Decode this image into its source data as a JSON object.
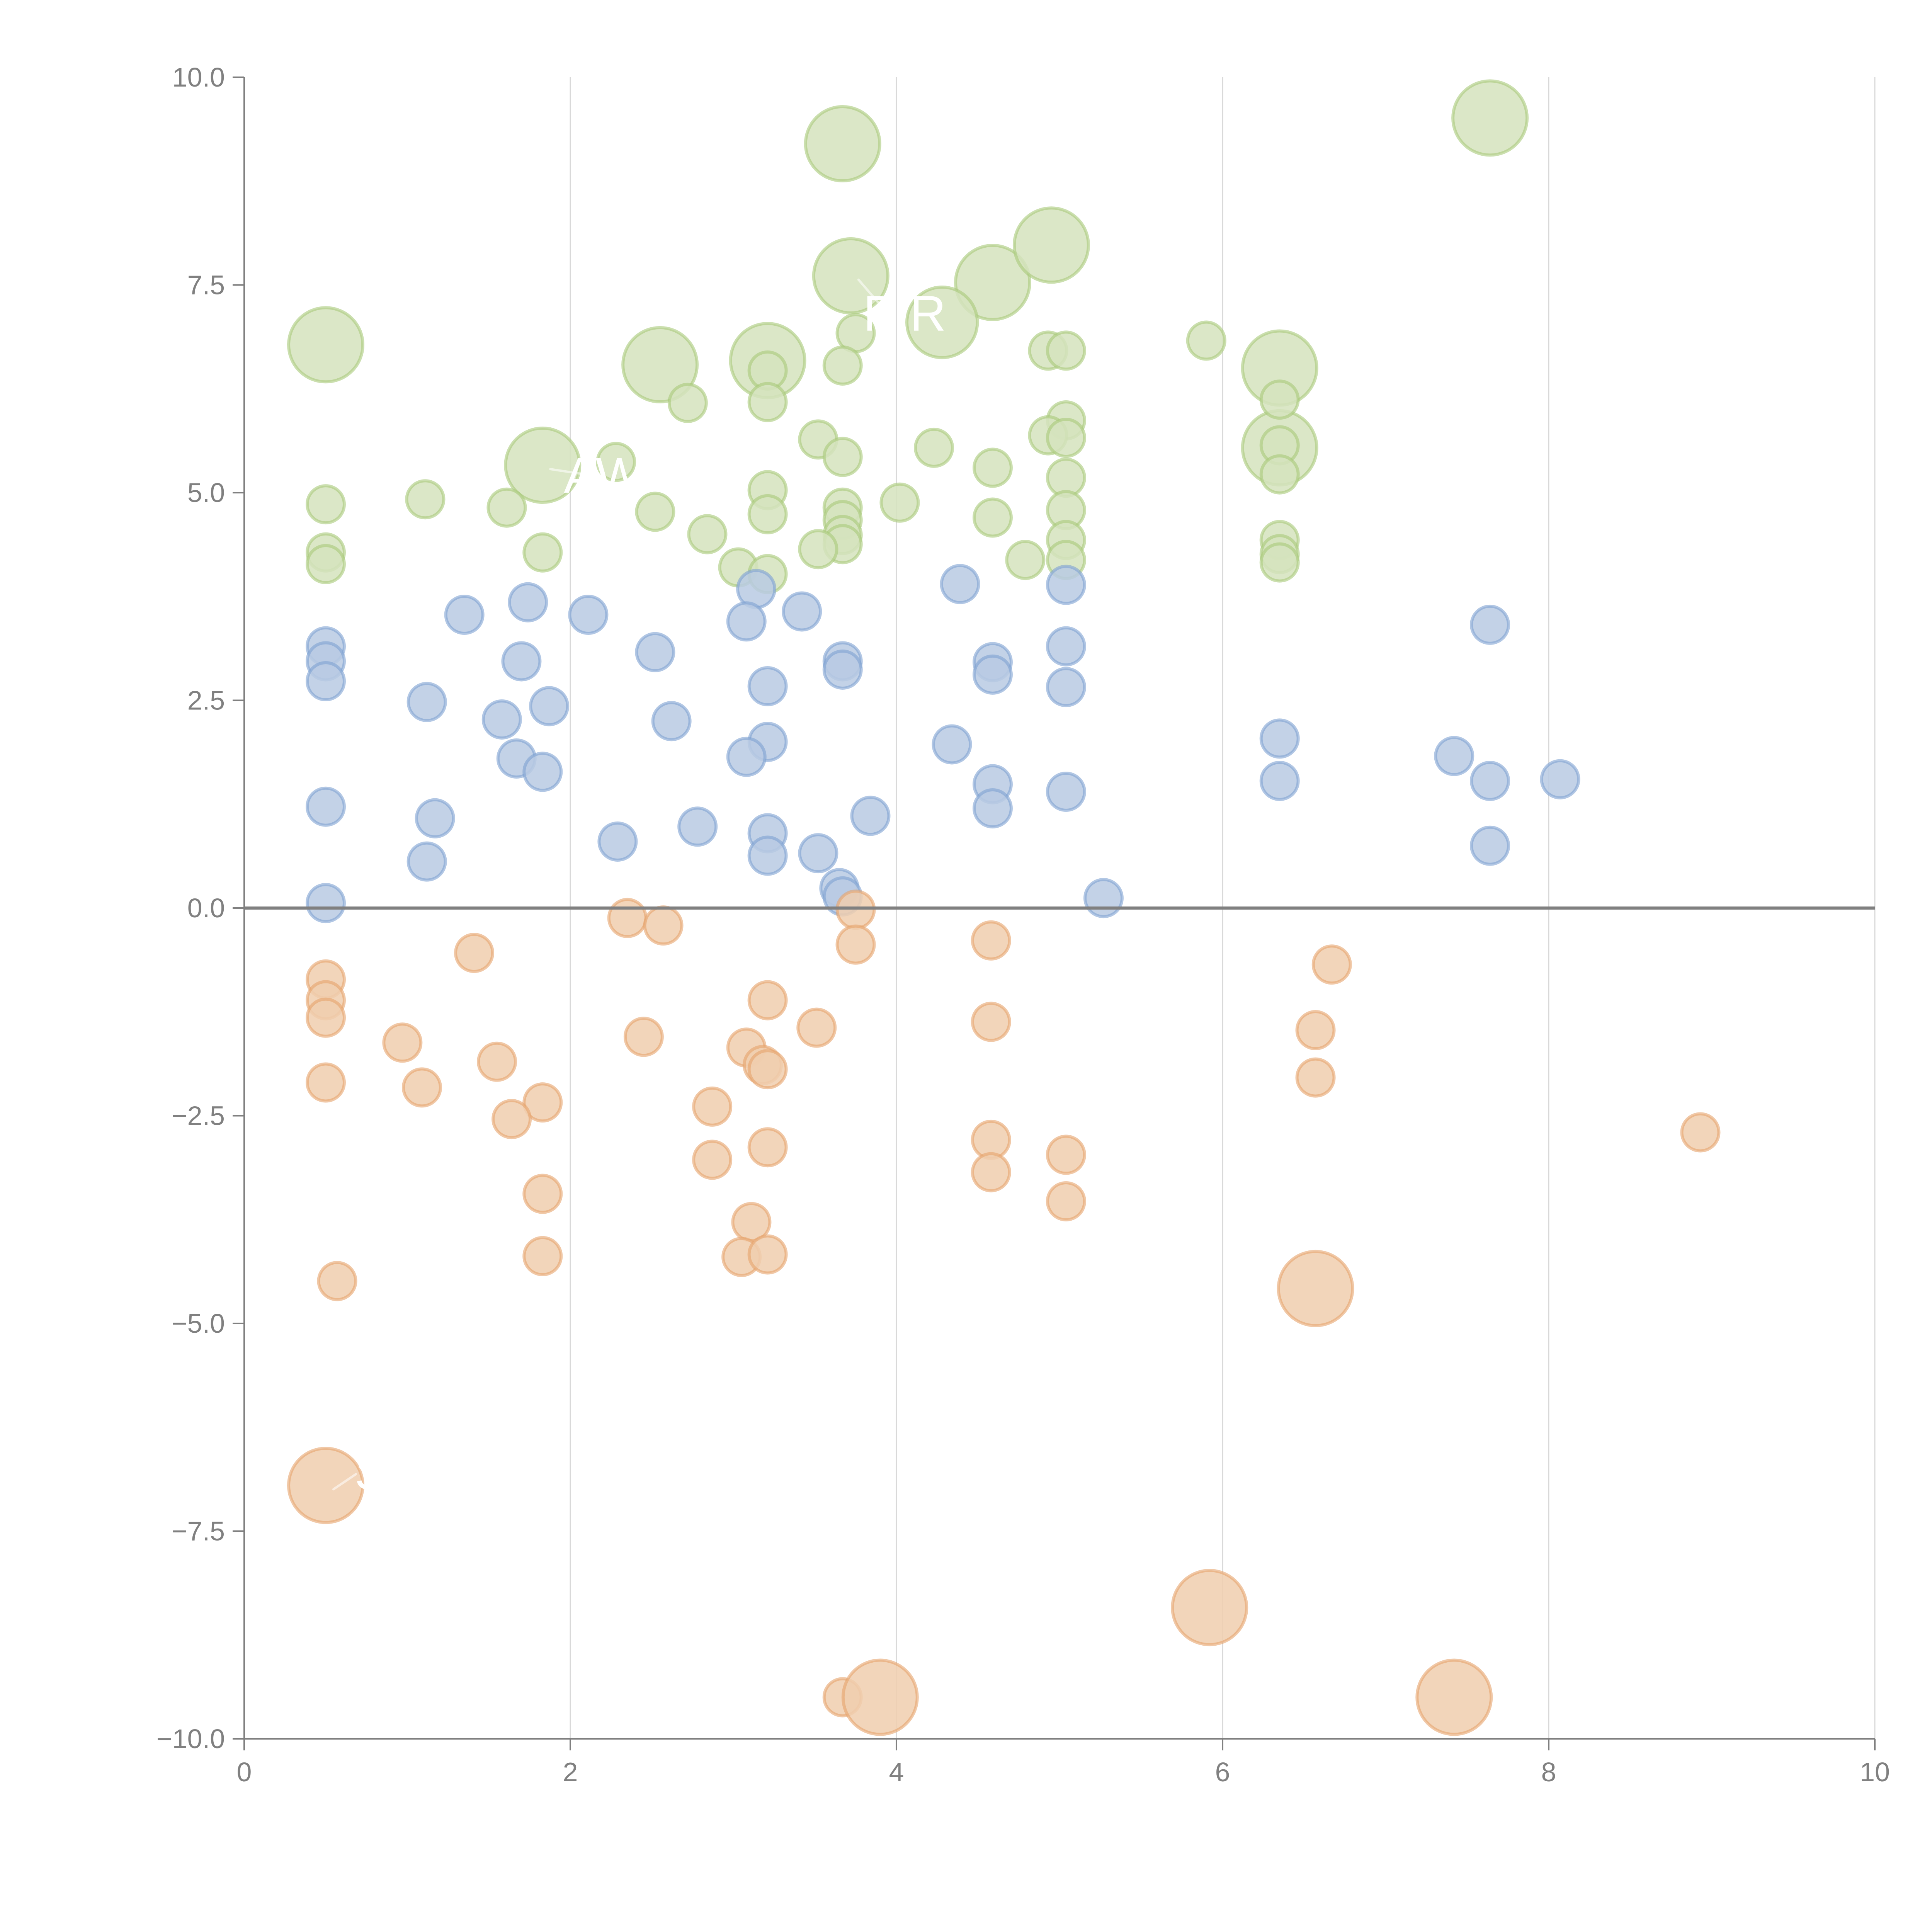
{
  "chart_data": {
    "type": "scatter",
    "subtype": "bubble",
    "title": "",
    "xlabel": "",
    "ylabel": "",
    "xlim": [
      0,
      10
    ],
    "ylim": [
      -10,
      10
    ],
    "x_ticks": [
      "0",
      "2",
      "4",
      "6",
      "8",
      "10"
    ],
    "x_tick_values": [
      0,
      2,
      4,
      6,
      8,
      10
    ],
    "y_ticks": [
      "10.0",
      "7.5",
      "5.0",
      "2.5",
      "0.0",
      "−2.5",
      "−5.0",
      "−7.5",
      "−10.0"
    ],
    "y_tick_values": [
      10,
      7.5,
      5,
      2.5,
      0,
      -2.5,
      -5,
      -7.5,
      -10
    ],
    "grid": "vertical",
    "zero_line": true,
    "legend": "none",
    "series": [
      {
        "name": "green",
        "color": "#a9c97a",
        "fill": "#d5e3bd",
        "points": [
          {
            "x": 0.5,
            "y": 6.78,
            "size": 2
          },
          {
            "x": 3.67,
            "y": 9.2,
            "size": 2
          },
          {
            "x": 7.64,
            "y": 9.51,
            "size": 2
          },
          {
            "x": 3.72,
            "y": 7.61,
            "size": 2
          },
          {
            "x": 4.59,
            "y": 7.53,
            "size": 2
          },
          {
            "x": 4.95,
            "y": 7.98,
            "size": 2
          },
          {
            "x": 4.28,
            "y": 7.05,
            "size": 1.9
          },
          {
            "x": 2.55,
            "y": 6.54,
            "size": 2
          },
          {
            "x": 3.21,
            "y": 6.59,
            "size": 2
          },
          {
            "x": 6.35,
            "y": 6.5,
            "size": 2
          },
          {
            "x": 6.35,
            "y": 5.54,
            "size": 2
          },
          {
            "x": 1.83,
            "y": 5.33,
            "size": 2
          },
          {
            "x": 3.75,
            "y": 6.92,
            "size": 1
          },
          {
            "x": 3.67,
            "y": 6.53,
            "size": 1
          },
          {
            "x": 3.21,
            "y": 6.47,
            "size": 1
          },
          {
            "x": 3.21,
            "y": 6.09,
            "size": 1
          },
          {
            "x": 2.72,
            "y": 6.08,
            "size": 1
          },
          {
            "x": 5.9,
            "y": 6.83,
            "size": 1
          },
          {
            "x": 4.93,
            "y": 6.71,
            "size": 1
          },
          {
            "x": 5.04,
            "y": 6.71,
            "size": 1
          },
          {
            "x": 5.04,
            "y": 5.87,
            "size": 1
          },
          {
            "x": 4.93,
            "y": 5.69,
            "size": 1
          },
          {
            "x": 5.04,
            "y": 5.66,
            "size": 1
          },
          {
            "x": 6.35,
            "y": 6.12,
            "size": 1
          },
          {
            "x": 6.35,
            "y": 5.57,
            "size": 1
          },
          {
            "x": 6.35,
            "y": 5.22,
            "size": 1
          },
          {
            "x": 3.52,
            "y": 5.64,
            "size": 1
          },
          {
            "x": 3.67,
            "y": 5.43,
            "size": 1
          },
          {
            "x": 4.23,
            "y": 5.54,
            "size": 1
          },
          {
            "x": 4.59,
            "y": 5.3,
            "size": 1
          },
          {
            "x": 5.04,
            "y": 5.18,
            "size": 1
          },
          {
            "x": 2.28,
            "y": 5.37,
            "size": 1
          },
          {
            "x": 0.5,
            "y": 4.86,
            "size": 1
          },
          {
            "x": 1.11,
            "y": 4.92,
            "size": 1
          },
          {
            "x": 1.61,
            "y": 4.82,
            "size": 1
          },
          {
            "x": 2.52,
            "y": 4.77,
            "size": 1
          },
          {
            "x": 3.21,
            "y": 5.03,
            "size": 1
          },
          {
            "x": 3.21,
            "y": 4.74,
            "size": 1
          },
          {
            "x": 3.67,
            "y": 4.82,
            "size": 1
          },
          {
            "x": 3.67,
            "y": 4.67,
            "size": 1
          },
          {
            "x": 4.02,
            "y": 4.88,
            "size": 1
          },
          {
            "x": 4.59,
            "y": 4.7,
            "size": 1
          },
          {
            "x": 5.04,
            "y": 4.79,
            "size": 1
          },
          {
            "x": 2.84,
            "y": 4.5,
            "size": 1
          },
          {
            "x": 3.67,
            "y": 4.49,
            "size": 1
          },
          {
            "x": 3.67,
            "y": 4.38,
            "size": 1
          },
          {
            "x": 5.04,
            "y": 4.43,
            "size": 1
          },
          {
            "x": 0.5,
            "y": 4.28,
            "size": 1
          },
          {
            "x": 0.5,
            "y": 4.14,
            "size": 1
          },
          {
            "x": 1.83,
            "y": 4.28,
            "size": 1
          },
          {
            "x": 3.52,
            "y": 4.32,
            "size": 1
          },
          {
            "x": 3.03,
            "y": 4.1,
            "size": 1
          },
          {
            "x": 3.21,
            "y": 4.02,
            "size": 1
          },
          {
            "x": 4.79,
            "y": 4.19,
            "size": 1
          },
          {
            "x": 5.04,
            "y": 4.19,
            "size": 1
          },
          {
            "x": 6.35,
            "y": 4.43,
            "size": 1
          },
          {
            "x": 6.35,
            "y": 4.26,
            "size": 1
          },
          {
            "x": 6.35,
            "y": 4.16,
            "size": 1
          }
        ]
      },
      {
        "name": "blue",
        "color": "#7fa2d2",
        "fill": "#b8cae3",
        "points": [
          {
            "x": 0.5,
            "y": 3.15,
            "size": 1
          },
          {
            "x": 0.5,
            "y": 2.97,
            "size": 1
          },
          {
            "x": 0.5,
            "y": 2.73,
            "size": 1
          },
          {
            "x": 1.35,
            "y": 3.53,
            "size": 1
          },
          {
            "x": 1.74,
            "y": 3.68,
            "size": 1
          },
          {
            "x": 1.7,
            "y": 2.97,
            "size": 1
          },
          {
            "x": 2.11,
            "y": 3.53,
            "size": 1
          },
          {
            "x": 1.12,
            "y": 2.48,
            "size": 1
          },
          {
            "x": 1.58,
            "y": 2.27,
            "size": 1
          },
          {
            "x": 1.87,
            "y": 2.43,
            "size": 1
          },
          {
            "x": 2.52,
            "y": 3.08,
            "size": 1
          },
          {
            "x": 2.62,
            "y": 2.25,
            "size": 1
          },
          {
            "x": 1.67,
            "y": 1.8,
            "size": 1
          },
          {
            "x": 1.83,
            "y": 1.64,
            "size": 1
          },
          {
            "x": 0.5,
            "y": 1.22,
            "size": 1
          },
          {
            "x": 1.17,
            "y": 1.08,
            "size": 1
          },
          {
            "x": 1.12,
            "y": 0.56,
            "size": 1
          },
          {
            "x": 2.29,
            "y": 0.8,
            "size": 1
          },
          {
            "x": 2.78,
            "y": 0.98,
            "size": 1
          },
          {
            "x": 0.5,
            "y": 0.06,
            "size": 1
          },
          {
            "x": 3.14,
            "y": 3.84,
            "size": 1
          },
          {
            "x": 3.08,
            "y": 3.45,
            "size": 1
          },
          {
            "x": 3.42,
            "y": 3.57,
            "size": 1
          },
          {
            "x": 3.21,
            "y": 2.67,
            "size": 1
          },
          {
            "x": 3.21,
            "y": 2.0,
            "size": 1
          },
          {
            "x": 3.08,
            "y": 1.82,
            "size": 1
          },
          {
            "x": 3.21,
            "y": 0.9,
            "size": 1
          },
          {
            "x": 3.21,
            "y": 0.63,
            "size": 1
          },
          {
            "x": 3.52,
            "y": 0.66,
            "size": 1
          },
          {
            "x": 3.84,
            "y": 1.11,
            "size": 1
          },
          {
            "x": 3.65,
            "y": 0.24,
            "size": 1
          },
          {
            "x": 3.67,
            "y": 0.14,
            "size": 1
          },
          {
            "x": 3.67,
            "y": 2.97,
            "size": 1
          },
          {
            "x": 3.67,
            "y": 2.87,
            "size": 1
          },
          {
            "x": 4.39,
            "y": 3.9,
            "size": 1
          },
          {
            "x": 4.34,
            "y": 1.97,
            "size": 1
          },
          {
            "x": 4.59,
            "y": 2.96,
            "size": 1
          },
          {
            "x": 4.59,
            "y": 2.81,
            "size": 1
          },
          {
            "x": 4.59,
            "y": 1.49,
            "size": 1
          },
          {
            "x": 4.59,
            "y": 1.2,
            "size": 1
          },
          {
            "x": 5.04,
            "y": 3.89,
            "size": 1
          },
          {
            "x": 5.04,
            "y": 3.15,
            "size": 1
          },
          {
            "x": 5.04,
            "y": 2.66,
            "size": 1
          },
          {
            "x": 5.04,
            "y": 1.4,
            "size": 1
          },
          {
            "x": 5.27,
            "y": 0.12,
            "size": 1
          },
          {
            "x": 6.35,
            "y": 2.04,
            "size": 1
          },
          {
            "x": 6.35,
            "y": 1.53,
            "size": 1
          },
          {
            "x": 7.64,
            "y": 3.41,
            "size": 1
          },
          {
            "x": 7.42,
            "y": 1.83,
            "size": 1
          },
          {
            "x": 7.64,
            "y": 1.53,
            "size": 1
          },
          {
            "x": 7.64,
            "y": 0.75,
            "size": 1
          },
          {
            "x": 8.07,
            "y": 1.55,
            "size": 1
          }
        ]
      },
      {
        "name": "orange",
        "color": "#e6a36c",
        "fill": "#f0ceae",
        "points": [
          {
            "x": 2.35,
            "y": -0.12,
            "size": 1
          },
          {
            "x": 2.57,
            "y": -0.21,
            "size": 1
          },
          {
            "x": 3.75,
            "y": -0.02,
            "size": 1
          },
          {
            "x": 3.75,
            "y": -0.44,
            "size": 1
          },
          {
            "x": 4.58,
            "y": -0.39,
            "size": 1
          },
          {
            "x": 6.67,
            "y": -0.68,
            "size": 1
          },
          {
            "x": 0.5,
            "y": -0.86,
            "size": 1
          },
          {
            "x": 0.5,
            "y": -1.11,
            "size": 1
          },
          {
            "x": 0.5,
            "y": -1.32,
            "size": 1
          },
          {
            "x": 1.41,
            "y": -0.54,
            "size": 1
          },
          {
            "x": 3.21,
            "y": -1.11,
            "size": 1
          },
          {
            "x": 3.51,
            "y": -1.44,
            "size": 1
          },
          {
            "x": 2.45,
            "y": -1.55,
            "size": 1
          },
          {
            "x": 0.97,
            "y": -1.62,
            "size": 1
          },
          {
            "x": 3.08,
            "y": -1.68,
            "size": 1
          },
          {
            "x": 1.55,
            "y": -1.85,
            "size": 1
          },
          {
            "x": 3.18,
            "y": -1.89,
            "size": 1
          },
          {
            "x": 3.21,
            "y": -1.94,
            "size": 1
          },
          {
            "x": 0.5,
            "y": -2.1,
            "size": 1
          },
          {
            "x": 1.09,
            "y": -2.16,
            "size": 1
          },
          {
            "x": 1.83,
            "y": -2.34,
            "size": 1
          },
          {
            "x": 1.64,
            "y": -2.54,
            "size": 1
          },
          {
            "x": 2.87,
            "y": -2.39,
            "size": 1
          },
          {
            "x": 2.87,
            "y": -3.03,
            "size": 1
          },
          {
            "x": 3.21,
            "y": -2.88,
            "size": 1
          },
          {
            "x": 4.58,
            "y": -1.37,
            "size": 1
          },
          {
            "x": 4.58,
            "y": -2.79,
            "size": 1
          },
          {
            "x": 4.58,
            "y": -3.18,
            "size": 1
          },
          {
            "x": 5.04,
            "y": -2.97,
            "size": 1
          },
          {
            "x": 5.04,
            "y": -3.53,
            "size": 1
          },
          {
            "x": 6.57,
            "y": -1.47,
            "size": 1
          },
          {
            "x": 6.57,
            "y": -2.04,
            "size": 1
          },
          {
            "x": 8.93,
            "y": -2.7,
            "size": 1
          },
          {
            "x": 1.83,
            "y": -3.44,
            "size": 1
          },
          {
            "x": 1.83,
            "y": -4.19,
            "size": 1
          },
          {
            "x": 0.57,
            "y": -4.49,
            "size": 1
          },
          {
            "x": 3.11,
            "y": -3.78,
            "size": 1
          },
          {
            "x": 3.05,
            "y": -4.2,
            "size": 1
          },
          {
            "x": 3.21,
            "y": -4.17,
            "size": 1
          },
          {
            "x": 3.67,
            "y": -9.5,
            "size": 1
          },
          {
            "x": 6.57,
            "y": -4.58,
            "size": 2
          },
          {
            "x": 0.5,
            "y": -6.95,
            "size": 2
          },
          {
            "x": 5.92,
            "y": -8.42,
            "size": 2
          },
          {
            "x": 3.9,
            "y": -9.5,
            "size": 2
          },
          {
            "x": 7.42,
            "y": -9.5,
            "size": 2
          }
        ]
      }
    ],
    "annotations": [
      {
        "text": "AWA",
        "x": 1.83,
        "y": 5.33,
        "label_x": 2.3,
        "label_y": 5.0
      },
      {
        "text": "P R",
        "x": 3.72,
        "y": 7.61,
        "label_x": 4.05,
        "label_y": 6.95
      },
      {
        "text": "S",
        "x": 0.5,
        "y": -6.95,
        "label_x": 0.78,
        "label_y": -7.0
      }
    ]
  }
}
